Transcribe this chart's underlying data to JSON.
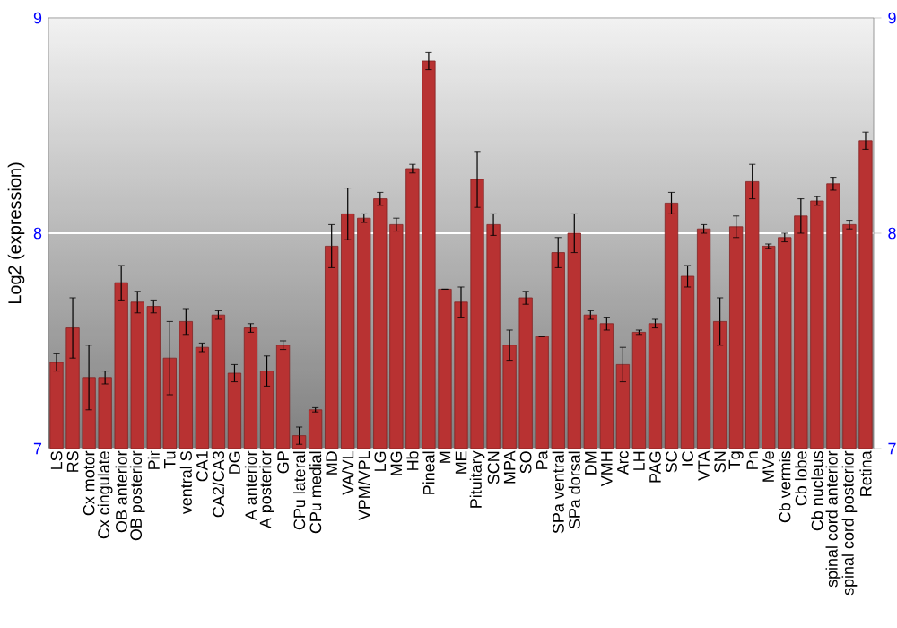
{
  "chart_data": {
    "type": "bar",
    "ylabel": "Log2 (expression)",
    "categories": [
      "LS",
      "RS",
      "Cx motor",
      "Cx cingulate",
      "OB anterior",
      "OB posterior",
      "Pir",
      "Tu",
      "ventral S",
      "CA1",
      "CA2/CA3",
      "DG",
      "A anterior",
      "A posterior",
      "GP",
      "CPu lateral",
      "CPu medial",
      "MD",
      "VA/VL",
      "VPM/VPL",
      "LG",
      "MG",
      "Hb",
      "Pineal",
      "M",
      "ME",
      "Pituitary",
      "SCN",
      "MPA",
      "SO",
      "Pa",
      "SPa ventral",
      "SPa dorsal",
      "DM",
      "VMH",
      "Arc",
      "LH",
      "PAG",
      "SC",
      "IC",
      "VTA",
      "SN",
      "Tg",
      "Pn",
      "MVe",
      "Cb vermis",
      "Cb lobe",
      "Cb nucleus",
      "spinal cord anterior",
      "spinal cord posterior",
      "Retina"
    ],
    "values": [
      7.4,
      7.56,
      7.33,
      7.33,
      7.77,
      7.68,
      7.66,
      7.42,
      7.59,
      7.47,
      7.62,
      7.35,
      7.56,
      7.36,
      7.48,
      7.06,
      7.18,
      7.94,
      8.09,
      8.07,
      8.16,
      8.04,
      8.3,
      8.8,
      7.74,
      7.68,
      8.25,
      8.04,
      7.48,
      7.7,
      7.52,
      7.91,
      8.0,
      7.62,
      7.58,
      7.39,
      7.54,
      7.58,
      8.14,
      7.8,
      8.02,
      7.59,
      8.03,
      8.24,
      7.94,
      7.98,
      8.08,
      8.15,
      8.23,
      8.04,
      8.43
    ],
    "errors": [
      0.04,
      0.14,
      0.15,
      0.03,
      0.08,
      0.05,
      0.03,
      0.17,
      0.06,
      0.02,
      0.02,
      0.04,
      0.02,
      0.07,
      0.02,
      0.04,
      0.01,
      0.1,
      0.12,
      0.02,
      0.03,
      0.03,
      0.02,
      0.04,
      0,
      0.07,
      0.13,
      0.05,
      0.07,
      0.03,
      0,
      0.07,
      0.09,
      0.02,
      0.03,
      0.08,
      0.01,
      0.02,
      0.05,
      0.05,
      0.02,
      0.11,
      0.05,
      0.08,
      0.01,
      0.02,
      0.08,
      0.02,
      0.03,
      0.02,
      0.04
    ],
    "color": "#b83232",
    "ylim": [
      7,
      9
    ],
    "yticks": [
      7,
      8,
      9
    ],
    "y2lim": [
      7,
      9
    ],
    "y2ticks": [
      7,
      8,
      9
    ],
    "grid": "y"
  }
}
